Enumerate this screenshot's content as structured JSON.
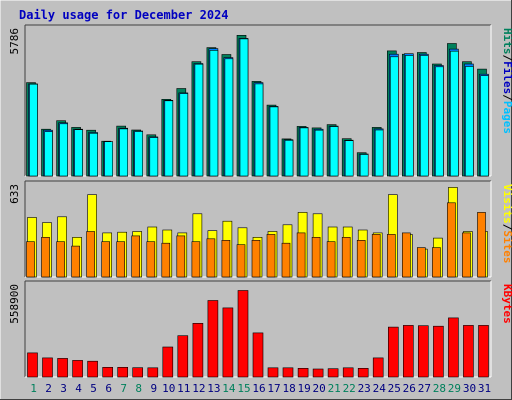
{
  "title": "Daily usage for December 2024",
  "colors": {
    "background": "#c0c0c0",
    "plot_bg": "#c0c0c0",
    "hits": "#00ffff",
    "files": "#0080ff",
    "pages": "#00805c",
    "visits": "#ffff00",
    "sites": "#ff8000",
    "kbytes": "#ff0000",
    "title": "#0000c0",
    "weekend": "#00805c",
    "weekday": "#000080"
  },
  "panels": {
    "top": {
      "max_label": "5786",
      "legend": [
        {
          "text": "Hits",
          "color": "#00805c"
        },
        {
          "text": "/",
          "color": "#000000"
        },
        {
          "text": "Files",
          "color": "#0000c0"
        },
        {
          "text": "/",
          "color": "#000000"
        },
        {
          "text": "Pages",
          "color": "#00c0ff"
        }
      ]
    },
    "middle": {
      "max_label": "633",
      "legend": [
        {
          "text": "Visits",
          "color": "#ffff00"
        },
        {
          "text": "/",
          "color": "#000000"
        },
        {
          "text": "Sites",
          "color": "#ff8000"
        }
      ]
    },
    "bottom": {
      "max_label": "558900",
      "legend": [
        {
          "text": "KBytes",
          "color": "#ff0000"
        }
      ]
    }
  },
  "chart_data": {
    "type": "bar",
    "title": "Daily usage for December 2024",
    "categories": [
      "1",
      "2",
      "3",
      "4",
      "5",
      "6",
      "7",
      "8",
      "9",
      "10",
      "11",
      "12",
      "13",
      "14",
      "15",
      "16",
      "17",
      "18",
      "19",
      "20",
      "21",
      "22",
      "23",
      "24",
      "25",
      "26",
      "27",
      "28",
      "29",
      "30",
      "31"
    ],
    "weekend_days": [
      "1",
      "7",
      "8",
      "14",
      "15",
      "21",
      "22",
      "28",
      "29"
    ],
    "panels": [
      {
        "name": "top",
        "ylim": [
          0,
          5786
        ],
        "series": [
          {
            "name": "Hits",
            "values": [
              3650,
              1830,
              2160,
              1900,
              1790,
              1360,
              1950,
              1800,
              1610,
              3000,
              3420,
              4470,
              5020,
              4750,
              5500,
              3700,
              2770,
              1450,
              1940,
              1880,
              2010,
              1460,
              910,
              1900,
              4890,
              4760,
              4830,
              4380,
              5180,
              4470,
              4180
            ]
          },
          {
            "name": "Files",
            "values": [
              3600,
              1790,
              2080,
              1830,
              1700,
              1340,
              1870,
              1760,
              1530,
              2960,
              3250,
              4400,
              4980,
              4630,
              5380,
              3650,
              2720,
              1420,
              1900,
              1830,
              1950,
              1400,
              860,
              1840,
              4760,
              4780,
              4760,
              4320,
              4960,
              4380,
              3980
            ]
          },
          {
            "name": "Pages",
            "values": [
              3590,
              1730,
              2040,
              1810,
              1670,
              1340,
              1840,
              1740,
              1500,
              2940,
              3220,
              4370,
              4910,
              4580,
              5360,
              3600,
              2700,
              1390,
              1880,
              1790,
              1930,
              1380,
              840,
              1800,
              4660,
              4710,
              4710,
              4270,
              4880,
              4280,
              3920
            ]
          }
        ]
      },
      {
        "name": "middle",
        "ylim": [
          0,
          633
        ],
        "series": [
          {
            "name": "Visits",
            "values": [
              405,
              370,
              410,
              270,
              560,
              300,
              305,
              310,
              340,
              320,
              300,
              430,
              315,
              380,
              335,
              270,
              310,
              355,
              440,
              430,
              340,
              340,
              320,
              300,
              560,
              290,
              190,
              265,
              610,
              310,
              310
            ]
          },
          {
            "name": "Sites",
            "values": [
              240,
              270,
              240,
              210,
              310,
              240,
              240,
              280,
              240,
              230,
              280,
              240,
              260,
              250,
              220,
              250,
              290,
              230,
              300,
              270,
              240,
              270,
              250,
              290,
              290,
              300,
              200,
              200,
              505,
              300,
              440
            ]
          }
        ]
      },
      {
        "name": "bottom",
        "ylim": [
          0,
          558900
        ],
        "series": [
          {
            "name": "KBytes",
            "values": [
              145000,
              115000,
              112000,
              100000,
              95000,
              58000,
              58000,
              56000,
              55000,
              180000,
              248000,
              323000,
              460000,
              415000,
              520000,
              265000,
              55000,
              55000,
              52000,
              48000,
              50000,
              55000,
              52000,
              115000,
              300000,
              310000,
              308000,
              305000,
              355000,
              310000,
              310000
            ]
          }
        ]
      }
    ]
  }
}
